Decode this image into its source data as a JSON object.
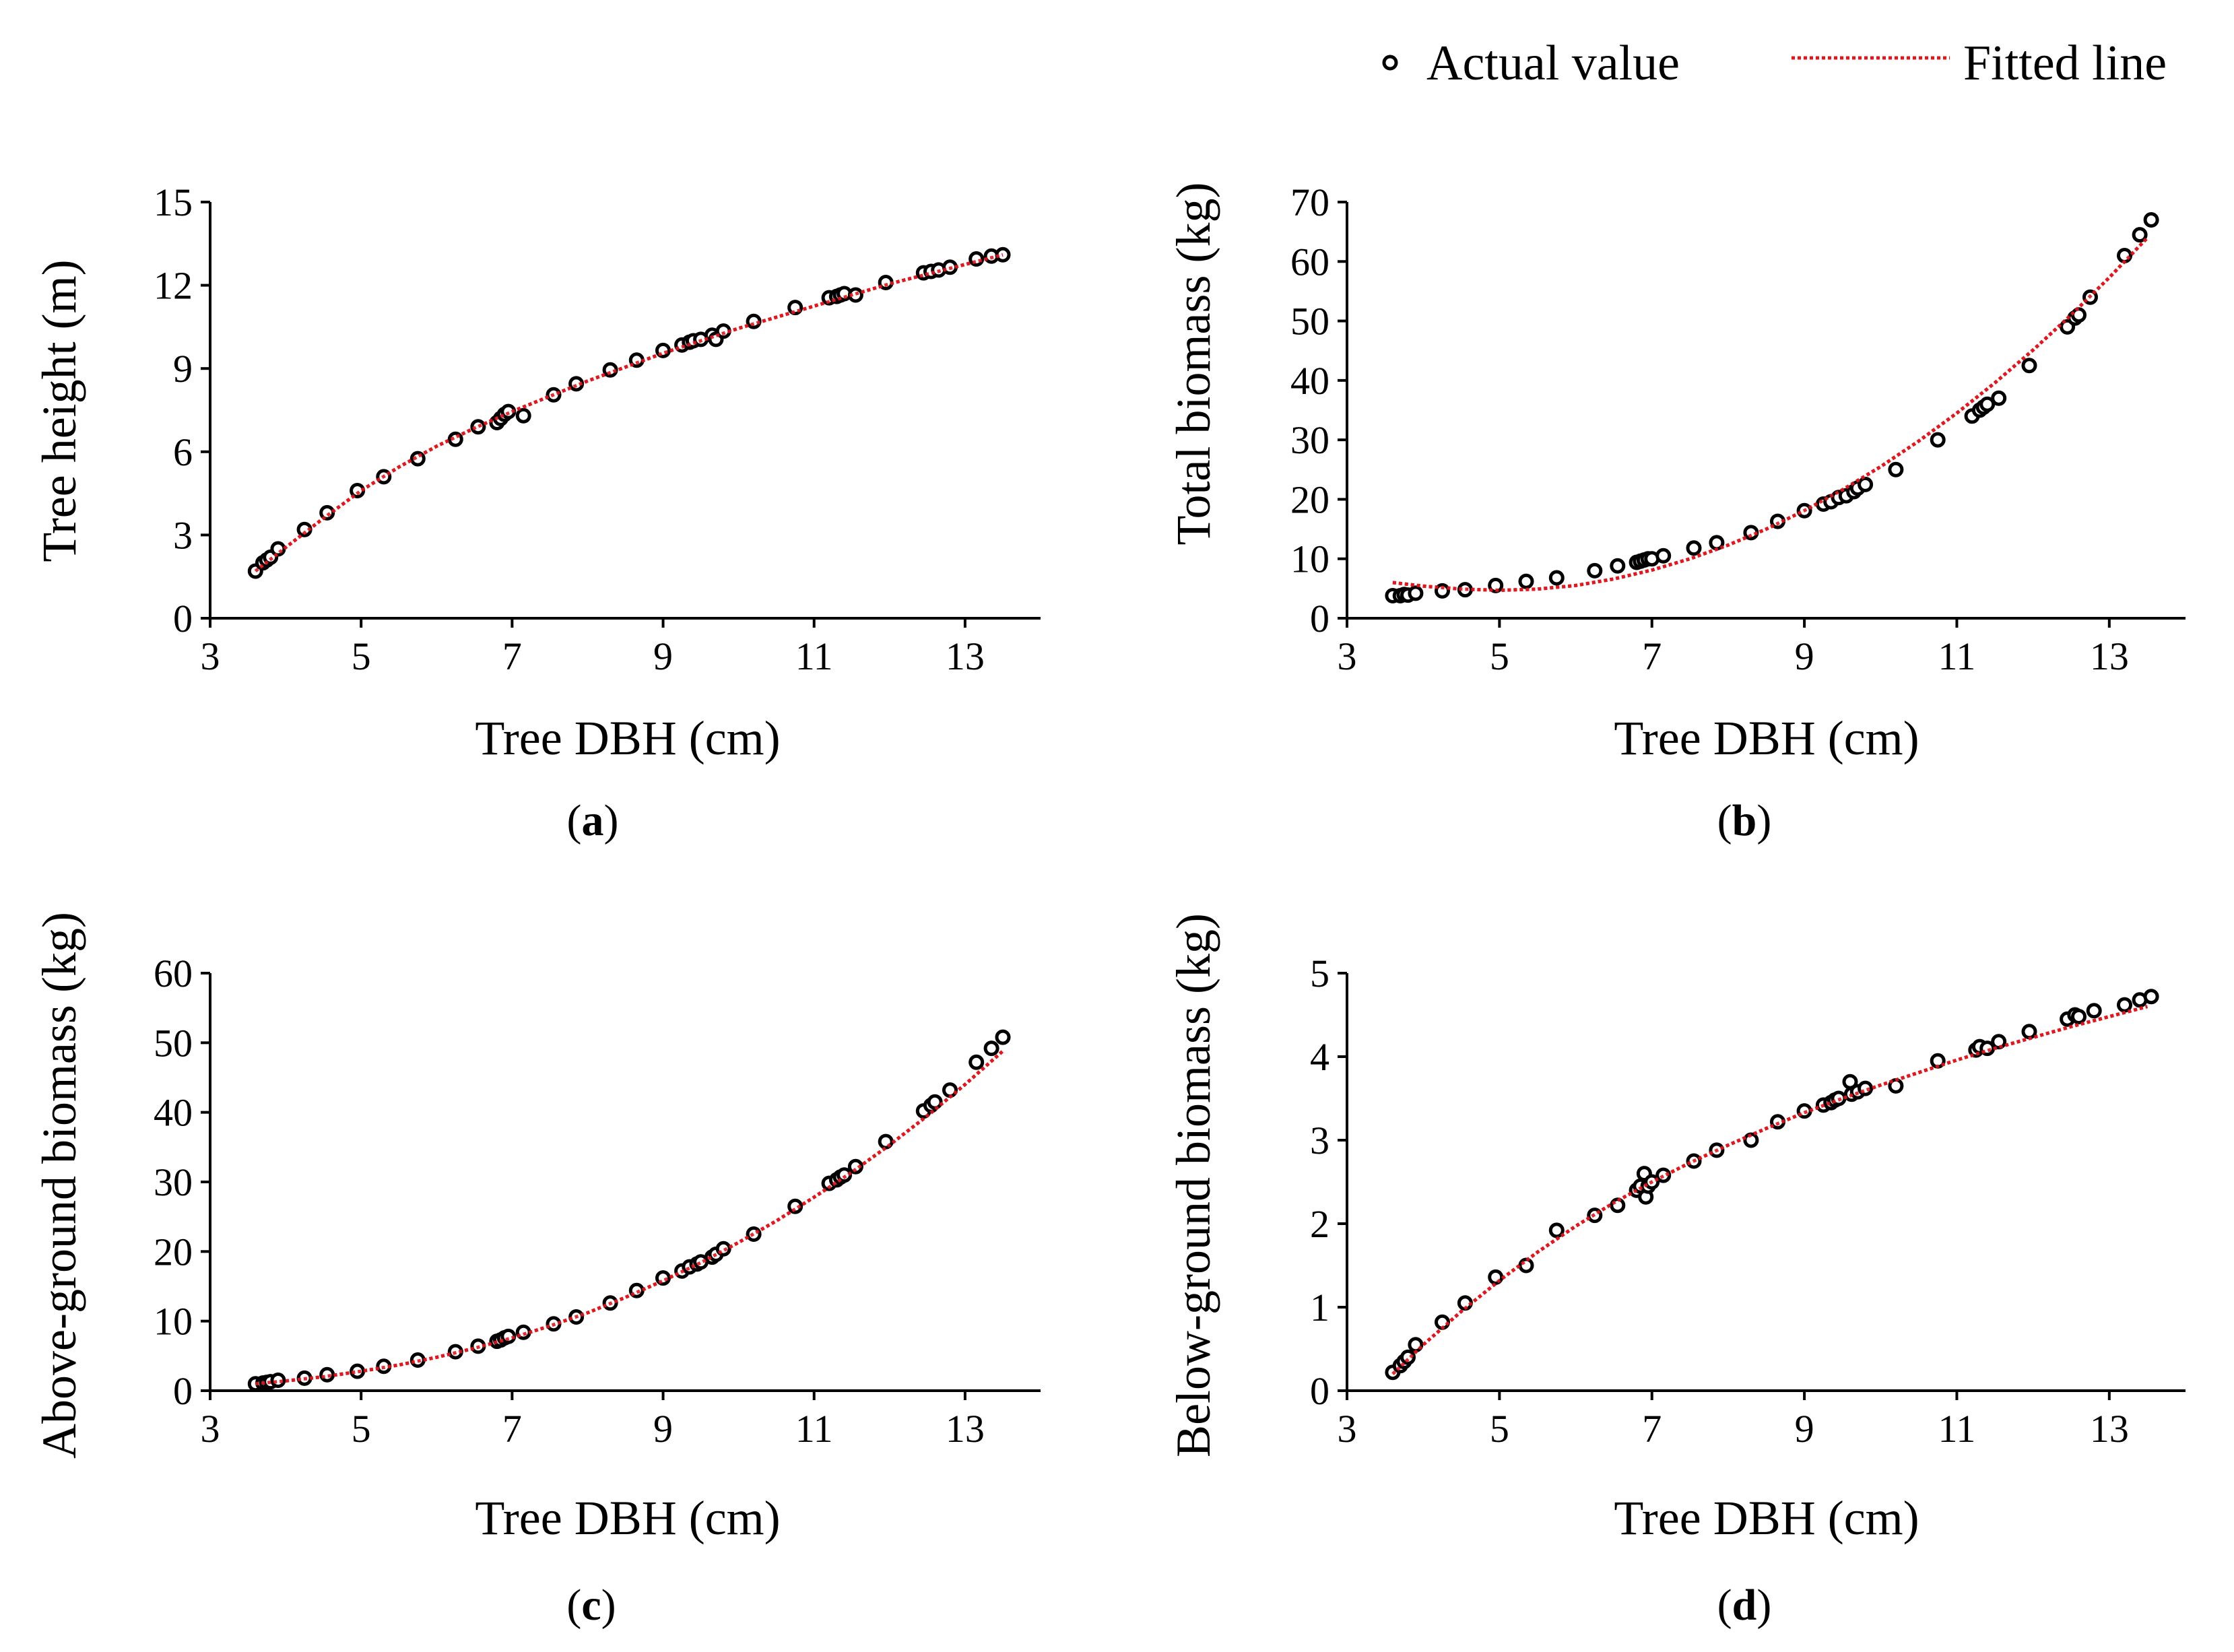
{
  "legend": {
    "actual_label": "Actual value",
    "fitted_label": "Fitted line",
    "fit_color": "#e8141c",
    "point_color": "#000000"
  },
  "chart_data": [
    {
      "id": "a",
      "type": "scatter",
      "panel_label": "a",
      "xlabel": "Tree DBH (cm)",
      "ylabel": "Tree height (m)",
      "xlim": [
        3,
        14
      ],
      "ylim": [
        0,
        15
      ],
      "xticks": [
        3,
        5,
        7,
        9,
        11,
        13
      ],
      "yticks": [
        0,
        3,
        6,
        9,
        12,
        15
      ],
      "points": {
        "x": [
          3.6,
          3.7,
          3.75,
          3.8,
          3.9,
          4.25,
          4.55,
          4.95,
          5.3,
          5.75,
          6.25,
          6.55,
          6.8,
          6.85,
          6.9,
          6.95,
          7.15,
          7.55,
          7.85,
          8.3,
          8.65,
          9.0,
          9.25,
          9.35,
          9.4,
          9.5,
          9.65,
          9.7,
          9.8,
          10.2,
          10.75,
          11.2,
          11.3,
          11.35,
          11.4,
          11.55,
          11.95,
          12.45,
          12.55,
          12.65,
          12.8,
          13.15,
          13.35,
          13.5
        ],
        "y": [
          1.7,
          2.0,
          2.1,
          2.2,
          2.5,
          3.2,
          3.8,
          4.6,
          5.1,
          5.75,
          6.45,
          6.9,
          7.05,
          7.2,
          7.35,
          7.45,
          7.3,
          8.05,
          8.45,
          8.95,
          9.3,
          9.65,
          9.85,
          9.95,
          10.0,
          10.05,
          10.2,
          10.05,
          10.35,
          10.7,
          11.2,
          11.55,
          11.6,
          11.65,
          11.7,
          11.65,
          12.1,
          12.45,
          12.5,
          12.55,
          12.65,
          12.95,
          13.05,
          13.1
        ]
      },
      "fit": {
        "x": [
          3.6,
          4.0,
          4.5,
          5.0,
          5.5,
          6.0,
          6.5,
          7.0,
          7.5,
          8.0,
          8.5,
          9.0,
          9.5,
          10.0,
          10.5,
          11.0,
          11.5,
          12.0,
          12.5,
          13.0,
          13.5
        ],
        "y": [
          1.7,
          2.55,
          3.6,
          4.6,
          5.45,
          6.2,
          6.85,
          7.45,
          8.0,
          8.55,
          9.05,
          9.55,
          10.0,
          10.45,
          10.85,
          11.25,
          11.65,
          12.05,
          12.4,
          12.75,
          13.1
        ]
      }
    },
    {
      "id": "b",
      "type": "scatter",
      "panel_label": "b",
      "xlabel": "Tree DBH (cm)",
      "ylabel": "Total biomass (kg)",
      "xlim": [
        3,
        14
      ],
      "ylim": [
        0,
        70
      ],
      "xticks": [
        3,
        5,
        7,
        9,
        11,
        13
      ],
      "yticks": [
        0,
        10,
        20,
        30,
        40,
        50,
        60,
        70
      ],
      "points": {
        "x": [
          3.6,
          3.7,
          3.75,
          3.8,
          3.9,
          4.25,
          4.55,
          4.95,
          5.35,
          5.75,
          6.25,
          6.55,
          6.8,
          6.85,
          6.9,
          6.95,
          7.0,
          7.15,
          7.55,
          7.85,
          8.3,
          8.65,
          9.0,
          9.25,
          9.35,
          9.45,
          9.55,
          9.65,
          9.7,
          9.8,
          10.2,
          10.75,
          11.2,
          11.3,
          11.35,
          11.4,
          11.55,
          11.95,
          12.45,
          12.55,
          12.6,
          12.75,
          13.2,
          13.4,
          13.55
        ],
        "y": [
          3.8,
          3.8,
          4.0,
          3.9,
          4.2,
          4.6,
          4.8,
          5.5,
          6.2,
          6.8,
          8.0,
          8.8,
          9.4,
          9.6,
          9.8,
          10.0,
          10.0,
          10.5,
          11.8,
          12.7,
          14.4,
          16.3,
          18.1,
          19.2,
          19.6,
          20.3,
          20.6,
          21.3,
          21.9,
          22.5,
          25.0,
          30.0,
          34.0,
          35.0,
          35.5,
          36.0,
          37.0,
          42.5,
          49.0,
          50.5,
          51.0,
          54.0,
          61.0,
          64.5,
          67.0
        ]
      },
      "fit": {
        "x": [
          3.6,
          4.0,
          4.5,
          5.0,
          5.5,
          6.0,
          6.5,
          7.0,
          7.5,
          8.0,
          8.5,
          9.0,
          9.5,
          10.0,
          10.5,
          11.0,
          11.5,
          12.0,
          12.5,
          13.0,
          13.5
        ],
        "y": [
          6.0,
          5.4,
          4.9,
          4.7,
          4.9,
          5.5,
          6.6,
          8.1,
          10.0,
          12.3,
          15.0,
          18.1,
          21.6,
          25.5,
          29.8,
          34.5,
          39.6,
          45.1,
          51.0,
          57.3,
          64.0
        ]
      }
    },
    {
      "id": "c",
      "type": "scatter",
      "panel_label": "c",
      "xlabel": "Tree DBH (cm)",
      "ylabel": "Above-ground biomass (kg)",
      "xlim": [
        3,
        14
      ],
      "ylim": [
        0,
        60
      ],
      "xticks": [
        3,
        5,
        7,
        9,
        11,
        13
      ],
      "yticks": [
        0,
        10,
        20,
        30,
        40,
        50,
        60
      ],
      "points": {
        "x": [
          3.6,
          3.7,
          3.75,
          3.8,
          3.9,
          4.25,
          4.55,
          4.95,
          5.3,
          5.75,
          6.25,
          6.55,
          6.8,
          6.85,
          6.9,
          6.95,
          7.15,
          7.55,
          7.85,
          8.3,
          8.65,
          9.0,
          9.25,
          9.35,
          9.45,
          9.5,
          9.65,
          9.7,
          9.8,
          10.2,
          10.75,
          11.2,
          11.3,
          11.35,
          11.4,
          11.55,
          11.95,
          12.45,
          12.55,
          12.6,
          12.8,
          13.15,
          13.35,
          13.5
        ],
        "y": [
          1.0,
          1.1,
          1.2,
          1.3,
          1.5,
          1.8,
          2.3,
          2.8,
          3.5,
          4.4,
          5.6,
          6.4,
          7.1,
          7.3,
          7.6,
          7.8,
          8.4,
          9.6,
          10.6,
          12.6,
          14.4,
          16.2,
          17.2,
          17.8,
          18.2,
          18.5,
          19.2,
          19.6,
          20.4,
          22.5,
          26.5,
          29.8,
          30.3,
          30.7,
          31.0,
          32.2,
          35.8,
          40.2,
          41.0,
          41.5,
          43.2,
          47.2,
          49.2,
          50.8
        ]
      },
      "fit": {
        "x": [
          3.6,
          4.0,
          4.5,
          5.0,
          5.5,
          6.0,
          6.5,
          7.0,
          7.5,
          8.0,
          8.5,
          9.0,
          9.5,
          10.0,
          10.5,
          11.0,
          11.5,
          12.0,
          12.5,
          13.0,
          13.5
        ],
        "y": [
          1.0,
          1.4,
          2.0,
          2.8,
          3.7,
          4.8,
          6.1,
          7.6,
          9.3,
          11.2,
          13.4,
          15.8,
          18.4,
          21.3,
          24.4,
          27.8,
          31.4,
          35.3,
          39.5,
          44.0,
          48.8
        ]
      }
    },
    {
      "id": "d",
      "type": "scatter",
      "panel_label": "d",
      "xlabel": "Tree DBH (cm)",
      "ylabel": "Below-ground biomass (kg)",
      "xlim": [
        3,
        14
      ],
      "ylim": [
        0,
        5
      ],
      "xticks": [
        3,
        5,
        7,
        9,
        11,
        13
      ],
      "yticks": [
        0,
        1,
        2,
        3,
        4,
        5
      ],
      "points": {
        "x": [
          3.6,
          3.7,
          3.75,
          3.8,
          3.9,
          4.25,
          4.55,
          4.95,
          5.35,
          5.75,
          6.25,
          6.55,
          6.8,
          6.85,
          6.9,
          6.92,
          6.95,
          7.0,
          7.15,
          7.55,
          7.85,
          8.3,
          8.65,
          9.0,
          9.25,
          9.35,
          9.4,
          9.45,
          9.6,
          9.62,
          9.7,
          9.8,
          10.2,
          10.75,
          11.25,
          11.3,
          11.4,
          11.55,
          11.95,
          12.45,
          12.55,
          12.6,
          12.8,
          13.2,
          13.4,
          13.55
        ],
        "y": [
          0.22,
          0.3,
          0.35,
          0.4,
          0.55,
          0.82,
          1.05,
          1.36,
          1.5,
          1.92,
          2.1,
          2.22,
          2.4,
          2.45,
          2.6,
          2.32,
          2.45,
          2.5,
          2.58,
          2.75,
          2.88,
          3.0,
          3.22,
          3.35,
          3.42,
          3.45,
          3.48,
          3.5,
          3.7,
          3.55,
          3.58,
          3.62,
          3.65,
          3.95,
          4.08,
          4.12,
          4.1,
          4.18,
          4.3,
          4.45,
          4.5,
          4.48,
          4.55,
          4.62,
          4.68,
          4.72
        ]
      },
      "fit": {
        "x": [
          3.6,
          4.0,
          4.5,
          5.0,
          5.5,
          6.0,
          6.5,
          7.0,
          7.5,
          8.0,
          8.5,
          9.0,
          9.5,
          10.0,
          10.5,
          11.0,
          11.5,
          12.0,
          12.5,
          13.0,
          13.5
        ],
        "y": [
          0.2,
          0.55,
          0.95,
          1.32,
          1.66,
          1.97,
          2.25,
          2.5,
          2.73,
          2.94,
          3.14,
          3.33,
          3.5,
          3.66,
          3.81,
          3.96,
          4.1,
          4.23,
          4.36,
          4.48,
          4.6
        ]
      }
    }
  ]
}
